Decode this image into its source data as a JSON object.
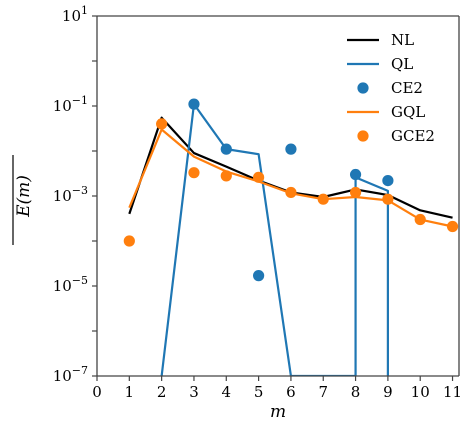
{
  "chart_data": {
    "type": "line",
    "xlabel": "m",
    "ylabel": "E(m)",
    "xlim": [
      0,
      11.2
    ],
    "ylim_log10": [
      -7,
      1
    ],
    "y_scale": "log",
    "x_ticks": [
      0,
      1,
      2,
      3,
      4,
      5,
      6,
      7,
      8,
      9,
      10,
      11
    ],
    "y_ticks": [
      {
        "exp": 1,
        "base": "10",
        "sup": "1"
      },
      {
        "exp": -1,
        "base": "10",
        "sup": "−1"
      },
      {
        "exp": -3,
        "base": "10",
        "sup": "−3"
      },
      {
        "exp": -5,
        "base": "10",
        "sup": "−5"
      },
      {
        "exp": -7,
        "base": "10",
        "sup": "−7"
      }
    ],
    "grid": false,
    "legend_position": "top-right",
    "series": [
      {
        "name": "NL",
        "kind": "line",
        "color": "#000000",
        "x": [
          1,
          2,
          3,
          4,
          5,
          6,
          7,
          8,
          9,
          10,
          11
        ],
        "y": [
          0.0004,
          0.055,
          0.009,
          0.0045,
          0.0022,
          0.0012,
          0.00095,
          0.0014,
          0.00105,
          0.00048,
          0.00033
        ]
      },
      {
        "name": "QL",
        "kind": "line",
        "color": "#1f77b4",
        "x": [
          2,
          3,
          4,
          5,
          6,
          8,
          8,
          9,
          9
        ],
        "y": [
          1e-07,
          0.11,
          0.011,
          0.0085,
          1e-07,
          1e-07,
          0.0026,
          0.0013,
          1e-07
        ]
      },
      {
        "name": "CE2",
        "kind": "scatter",
        "color": "#1f77b4",
        "x": [
          3,
          4,
          5,
          6,
          8,
          9
        ],
        "y": [
          0.11,
          0.011,
          1.7e-05,
          0.011,
          0.003,
          0.0022
        ]
      },
      {
        "name": "GQL",
        "kind": "line",
        "color": "#ff7f0e",
        "x": [
          1,
          2,
          3,
          4,
          5,
          6,
          7,
          8,
          9,
          10,
          11
        ],
        "y": [
          0.00055,
          0.03,
          0.0075,
          0.0035,
          0.0021,
          0.00115,
          0.00085,
          0.00095,
          0.0008,
          0.0003,
          0.00021
        ]
      },
      {
        "name": "GCE2",
        "kind": "scatter",
        "color": "#ff7f0e",
        "x": [
          1,
          2,
          3,
          4,
          5,
          6,
          7,
          8,
          9,
          10,
          11
        ],
        "y": [
          0.0001,
          0.04,
          0.0033,
          0.0028,
          0.0026,
          0.0012,
          0.00085,
          0.0012,
          0.00085,
          0.0003,
          0.00021
        ]
      }
    ]
  }
}
